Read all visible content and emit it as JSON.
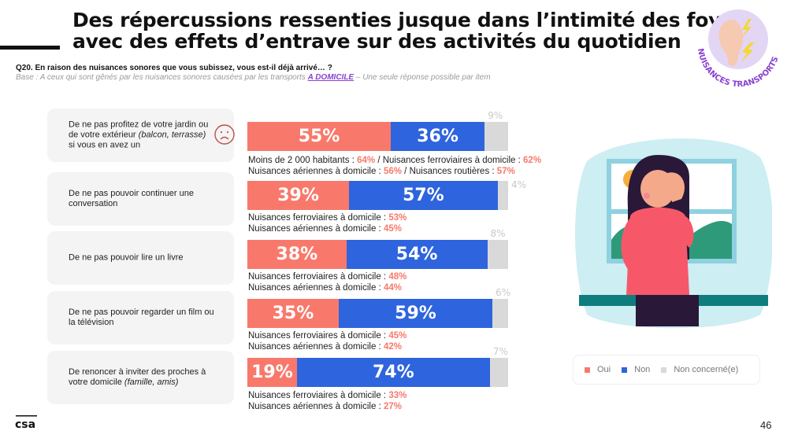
{
  "header": {
    "title_line1": "Des répercussions ressenties jusque dans l’intimité des foyers,",
    "title_line2": "avec des effets d’entrave sur des activités du quotidien",
    "question": "Q20. En raison des nuisances sonores que vous subissez, vous est-il déjà arrivé… ?",
    "base_prefix": "Base : A ceux qui sont gênés par les nuisances sonores causées par les transports ",
    "base_highlight": "A DOMICILE",
    "base_suffix": " – Une seule réponse possible par item",
    "badge_text": "NUISANCES TRANSPORTS",
    "badge_icon": "ear-with-lightning-icon"
  },
  "colors": {
    "oui": "#f8796b",
    "non": "#2e64dd",
    "non_concerne": "#d9d9d9",
    "accent": "#8a3fd1"
  },
  "chart_data": {
    "type": "bar",
    "orientation": "horizontal-stacked-100",
    "categories": [
      "De ne pas profitez de votre jardin ou de votre extérieur (balcon, terrasse) si vous en avez un",
      "De ne pas pouvoir continuer une conversation",
      "De ne pas pouvoir lire un livre",
      "De ne pas pouvoir regarder un film ou la télévision",
      "De renoncer à inviter des proches à votre domicile (famille, amis)"
    ],
    "series": [
      {
        "name": "Oui",
        "values": [
          55,
          39,
          38,
          35,
          19
        ]
      },
      {
        "name": "Non",
        "values": [
          36,
          57,
          54,
          59,
          74
        ]
      },
      {
        "name": "Non concerné(e)",
        "values": [
          9,
          4,
          8,
          6,
          7
        ]
      }
    ],
    "unit": "%",
    "legend": [
      "Oui",
      "Non",
      "Non concerné(e)"
    ],
    "legend_position": "bottom-right"
  },
  "items": [
    {
      "label_plain": "De ne pas profitez de votre jardin ou de votre extérieur ",
      "label_italic": "(balcon, terrasse)",
      "label_after": " si vous en avez un",
      "has_sad_icon": true,
      "oui": "55%",
      "non": "36%",
      "nc": "9%",
      "notes": [
        [
          {
            "t": "Moins de 2 000 habitants : "
          },
          {
            "v": "64%"
          },
          {
            "t": " / Nuisances ferroviaires à domicile : "
          },
          {
            "v": "62%"
          }
        ],
        [
          {
            "t": "Nuisances aériennes à domicile : "
          },
          {
            "v": "56%"
          },
          {
            "t": " / Nuisances routières : "
          },
          {
            "v": "57%"
          }
        ]
      ]
    },
    {
      "label_plain": "De ne pas pouvoir continuer une conversation",
      "label_italic": "",
      "label_after": "",
      "oui": "39%",
      "non": "57%",
      "nc": "4%",
      "notes": [
        [
          {
            "t": "Nuisances ferroviaires à domicile : "
          },
          {
            "v": "53%"
          }
        ],
        [
          {
            "t": "Nuisances aériennes à domicile : "
          },
          {
            "v": "45%"
          }
        ]
      ]
    },
    {
      "label_plain": "De ne pas pouvoir lire un livre",
      "label_italic": "",
      "label_after": "",
      "oui": "38%",
      "non": "54%",
      "nc": "8%",
      "notes": [
        [
          {
            "t": "Nuisances ferroviaires à domicile : "
          },
          {
            "v": "48%"
          }
        ],
        [
          {
            "t": "Nuisances aériennes à domicile : "
          },
          {
            "v": "44%"
          }
        ]
      ]
    },
    {
      "label_plain": "De ne pas pouvoir regarder un film ou la télévision",
      "label_italic": "",
      "label_after": "",
      "oui": "35%",
      "non": "59%",
      "nc": "6%",
      "notes": [
        [
          {
            "t": "Nuisances ferroviaires à domicile : "
          },
          {
            "v": "45%"
          }
        ],
        [
          {
            "t": "Nuisances aériennes à domicile : "
          },
          {
            "v": "42%"
          }
        ]
      ]
    },
    {
      "label_plain": "De renoncer à inviter des proches à votre domicile ",
      "label_italic": "(famille, amis)",
      "label_after": "",
      "oui": "19%",
      "non": "74%",
      "nc": "7%",
      "notes": [
        [
          {
            "t": "Nuisances ferroviaires à domicile : "
          },
          {
            "v": "33%"
          }
        ],
        [
          {
            "t": "Nuisances aériennes à domicile : "
          },
          {
            "v": "27%"
          }
        ]
      ]
    }
  ],
  "legend": {
    "oui": "Oui",
    "non": "Non",
    "nc": "Non concerné(e)"
  },
  "footer": {
    "page_number": "46",
    "logo": "csa"
  },
  "illustration": "woman-facepalm-at-window-illustration"
}
